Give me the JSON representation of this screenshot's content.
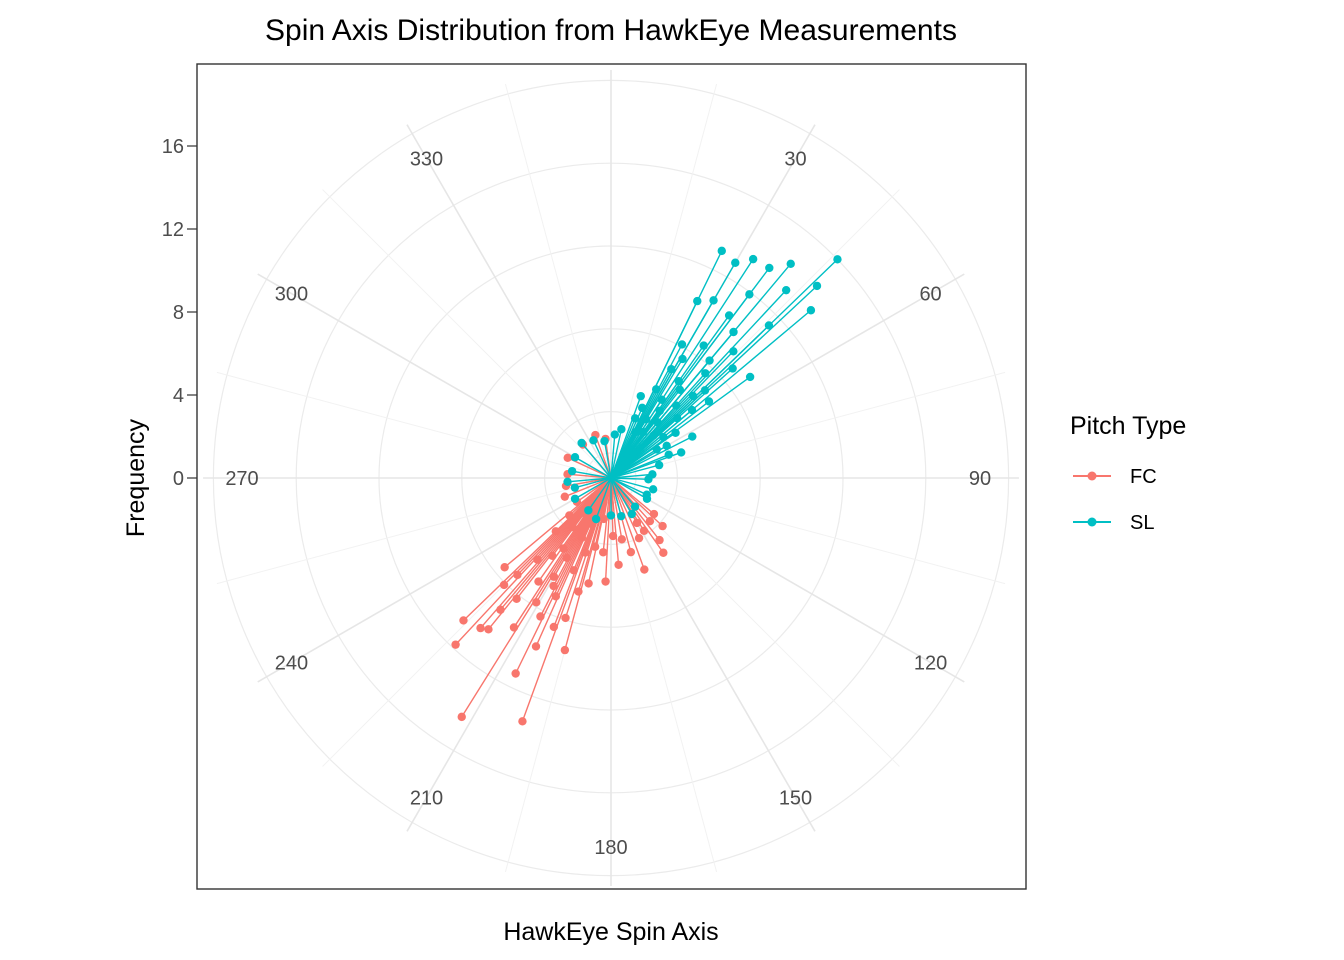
{
  "chart_data": {
    "type": "line",
    "coord": "polar",
    "title": "Spin Axis Distribution from HawkEye Measurements",
    "xlabel": "HawkEye Spin Axis",
    "ylabel": "Frequency",
    "angle_ticks": [
      "30",
      "60",
      "90",
      "120",
      "150",
      "180",
      "210",
      "240",
      "270",
      "300",
      "330"
    ],
    "y_ticks": [
      "0",
      "4",
      "8",
      "12",
      "16"
    ],
    "grid": true,
    "legend": {
      "title": "Pitch Type",
      "position": "right",
      "entries": [
        {
          "label": "FC",
          "color": "#F8766D"
        },
        {
          "label": "SL",
          "color": "#00BFC4"
        }
      ]
    },
    "series": [
      {
        "name": "FC",
        "color": "#F8766D",
        "points": [
          [
            212,
            12.4
          ],
          [
            200,
            11.3
          ],
          [
            206,
            9.3
          ],
          [
            223,
            9.8
          ],
          [
            221,
            8.4
          ],
          [
            226,
            8.7
          ],
          [
            219,
            8.2
          ],
          [
            204,
            7.7
          ],
          [
            195,
            7.4
          ],
          [
            213,
            7.4
          ],
          [
            220,
            7.1
          ],
          [
            201,
            6.5
          ],
          [
            207,
            6.3
          ],
          [
            225,
            6.1
          ],
          [
            224,
            5.3
          ],
          [
            198,
            5.9
          ],
          [
            211,
            5.8
          ],
          [
            218,
            6.2
          ],
          [
            230,
            5.5
          ],
          [
            205,
            5.1
          ],
          [
            215,
            4.9
          ],
          [
            208,
            4.7
          ],
          [
            196,
            4.5
          ],
          [
            210,
            4.3
          ],
          [
            222,
            4.1
          ],
          [
            192,
            4.0
          ],
          [
            202,
            3.6
          ],
          [
            217,
            3.5
          ],
          [
            209,
            3.2
          ],
          [
            214,
            2.9
          ],
          [
            199,
            2.6
          ],
          [
            226,
            2.5
          ],
          [
            193,
            2.2
          ],
          [
            206,
            2.0
          ],
          [
            218,
            1.8
          ],
          [
            228,
            1.5
          ],
          [
            203,
            1.2
          ],
          [
            212,
            1.0
          ],
          [
            190,
            0.8
          ],
          [
            220,
            0.6
          ],
          [
            235,
            0.8
          ],
          [
            248,
            1.2
          ],
          [
            260,
            1.0
          ],
          [
            275,
            0.9
          ],
          [
            295,
            1.1
          ],
          [
            320,
            0.9
          ],
          [
            340,
            1.0
          ],
          [
            352,
            0.7
          ],
          [
            155,
            2.0
          ],
          [
            148,
            1.8
          ],
          [
            133,
            2.2
          ],
          [
            165,
            2.5
          ],
          [
            175,
            3.0
          ],
          [
            183,
            3.8
          ],
          [
            130,
            1.5
          ],
          [
            145,
            3.2
          ],
          [
            160,
            3.5
          ],
          [
            150,
            1.3
          ],
          [
            138,
            1.6
          ],
          [
            170,
            1.8
          ],
          [
            186,
            2.4
          ],
          [
            178,
            1.6
          ],
          [
            142,
            2.6
          ]
        ]
      },
      {
        "name": "SL",
        "color": "#00BFC4",
        "points": [
          [
            46,
            14.0
          ],
          [
            40,
            12.3
          ],
          [
            47,
            12.4
          ],
          [
            33,
            11.4
          ],
          [
            37,
            11.5
          ],
          [
            50,
            11.4
          ],
          [
            26,
            11.0
          ],
          [
            30,
            10.8
          ],
          [
            43,
            11.2
          ],
          [
            37,
            9.9
          ],
          [
            30,
            8.7
          ],
          [
            26,
            8.3
          ],
          [
            46,
            9.4
          ],
          [
            36,
            8.5
          ],
          [
            40,
            8.0
          ],
          [
            44,
            7.3
          ],
          [
            54,
            7.1
          ],
          [
            48,
            6.7
          ],
          [
            28,
            6.1
          ],
          [
            35,
            6.6
          ],
          [
            40,
            6.2
          ],
          [
            31,
            5.5
          ],
          [
            42,
            5.6
          ],
          [
            47,
            5.0
          ],
          [
            52,
            4.8
          ],
          [
            29,
            4.8
          ],
          [
            35,
            4.5
          ],
          [
            45,
            4.4
          ],
          [
            38,
            4.2
          ],
          [
            50,
            3.9
          ],
          [
            27,
            3.6
          ],
          [
            42,
            3.5
          ],
          [
            33,
            3.3
          ],
          [
            48,
            3.1
          ],
          [
            36,
            2.8
          ],
          [
            55,
            2.6
          ],
          [
            24,
            2.5
          ],
          [
            40,
            2.3
          ],
          [
            31,
            2.1
          ],
          [
            52,
            2.0
          ],
          [
            60,
            1.9
          ],
          [
            22,
            1.9
          ],
          [
            45,
            1.7
          ],
          [
            35,
            1.5
          ],
          [
            68,
            1.8
          ],
          [
            58,
            1.4
          ],
          [
            28,
            1.3
          ],
          [
            75,
            1.2
          ],
          [
            85,
            0.8
          ],
          [
            92,
            0.6
          ],
          [
            105,
            0.9
          ],
          [
            115,
            0.7
          ],
          [
            120,
            0.8
          ],
          [
            12,
            1.2
          ],
          [
            5,
            0.9
          ],
          [
            350,
            0.6
          ],
          [
            335,
            0.8
          ],
          [
            320,
            1.0
          ],
          [
            300,
            0.8
          ],
          [
            280,
            0.7
          ],
          [
            265,
            0.9
          ],
          [
            255,
            0.6
          ],
          [
            240,
            0.8
          ],
          [
            215,
            0.7
          ],
          [
            200,
            0.9
          ],
          [
            180,
            0.6
          ],
          [
            165,
            0.7
          ],
          [
            150,
            0.8
          ],
          [
            140,
            0.6
          ],
          [
            20,
            3.0
          ],
          [
            63,
            3.2
          ],
          [
            70,
            2.4
          ]
        ]
      }
    ]
  }
}
